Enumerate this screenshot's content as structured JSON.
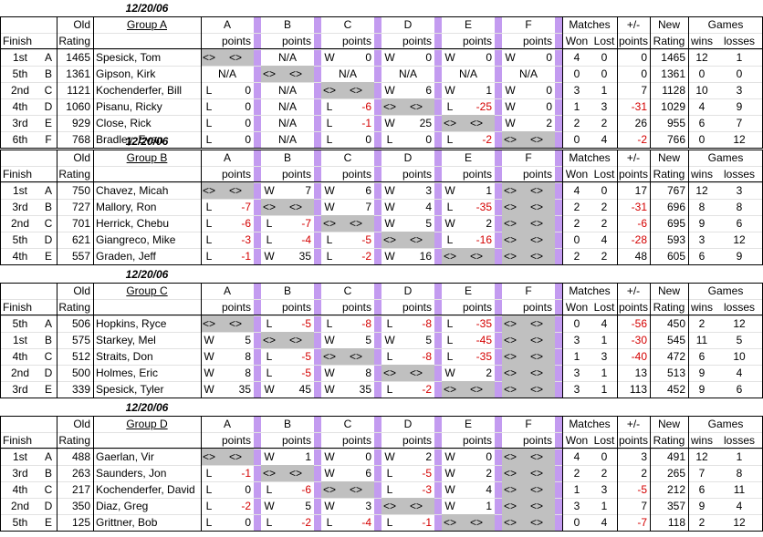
{
  "headers": {
    "old": "Old",
    "rating": "Rating",
    "finish": "Finish",
    "matches": "Matches",
    "won": "Won",
    "lost": "Lost",
    "plusminus": "+/-",
    "points": "points",
    "new": "New",
    "games": "Games",
    "wins": "wins",
    "losses": "losses",
    "na": "N/A",
    "self": "<>"
  },
  "groups": [
    {
      "date": "12/20/06",
      "name": "Group A",
      "cols": [
        "A",
        "B",
        "C",
        "D",
        "E",
        "F"
      ],
      "players": [
        {
          "finish": "1st",
          "letter": "A",
          "old": "1465",
          "name": "Spesick, Tom",
          "res": [
            [
              "<>",
              "<>"
            ],
            [
              "",
              "N/A"
            ],
            [
              "W",
              "0"
            ],
            [
              "W",
              "0"
            ],
            [
              "W",
              "0"
            ],
            [
              "W",
              "0"
            ]
          ],
          "won": "4",
          "lost": "0",
          "pm": "0",
          "new": "1465",
          "gw": "12",
          "gl": "1"
        },
        {
          "finish": "5th",
          "letter": "B",
          "old": "1361",
          "name": "Gipson, Kirk",
          "res": [
            [
              "N/A",
              ""
            ],
            [
              "<>",
              "<>"
            ],
            [
              "N/A",
              ""
            ],
            [
              "N/A",
              ""
            ],
            [
              "N/A",
              ""
            ],
            [
              "N/A",
              ""
            ]
          ],
          "won": "0",
          "lost": "0",
          "pm": "0",
          "new": "1361",
          "gw": "0",
          "gl": "0"
        },
        {
          "finish": "2nd",
          "letter": "C",
          "old": "1121",
          "name": "Kochenderfer, Bill",
          "res": [
            [
              "L",
              "0"
            ],
            [
              "",
              "N/A"
            ],
            [
              "<>",
              "<>"
            ],
            [
              "W",
              "6"
            ],
            [
              "W",
              "1"
            ],
            [
              "W",
              "0"
            ]
          ],
          "won": "3",
          "lost": "1",
          "pm": "7",
          "new": "1128",
          "gw": "10",
          "gl": "3"
        },
        {
          "finish": "4th",
          "letter": "D",
          "old": "1060",
          "name": "Pisanu, Ricky",
          "res": [
            [
              "L",
              "0"
            ],
            [
              "",
              "N/A"
            ],
            [
              "L",
              "-6"
            ],
            [
              "<>",
              "<>"
            ],
            [
              "L",
              "-25"
            ],
            [
              "W",
              "0"
            ]
          ],
          "won": "1",
          "lost": "3",
          "pm": "-31",
          "new": "1029",
          "gw": "4",
          "gl": "9"
        },
        {
          "finish": "3rd",
          "letter": "E",
          "old": "929",
          "name": "Close, Rick",
          "res": [
            [
              "L",
              "0"
            ],
            [
              "",
              "N/A"
            ],
            [
              "L",
              "-1"
            ],
            [
              "W",
              "25"
            ],
            [
              "<>",
              "<>"
            ],
            [
              "W",
              "2"
            ]
          ],
          "won": "2",
          "lost": "2",
          "pm": "26",
          "new": "955",
          "gw": "6",
          "gl": "7"
        },
        {
          "finish": "6th",
          "letter": "F",
          "old": "768",
          "name": "Bradley, Evan",
          "res": [
            [
              "L",
              "0"
            ],
            [
              "",
              "N/A"
            ],
            [
              "L",
              "0"
            ],
            [
              "L",
              "0"
            ],
            [
              "L",
              "-2"
            ],
            [
              "<>",
              "<>"
            ]
          ],
          "won": "0",
          "lost": "4",
          "pm": "-2",
          "new": "766",
          "gw": "0",
          "gl": "12"
        }
      ]
    },
    {
      "date": "12/20/06",
      "name": "Group B",
      "cols": [
        "A",
        "B",
        "C",
        "D",
        "E",
        "F"
      ],
      "players": [
        {
          "finish": "1st",
          "letter": "A",
          "old": "750",
          "name": "Chavez, Micah",
          "res": [
            [
              "<>",
              "<>"
            ],
            [
              "W",
              "7"
            ],
            [
              "W",
              "6"
            ],
            [
              "W",
              "3"
            ],
            [
              "W",
              "1"
            ],
            [
              "<>",
              "<>"
            ]
          ],
          "won": "4",
          "lost": "0",
          "pm": "17",
          "new": "767",
          "gw": "12",
          "gl": "3"
        },
        {
          "finish": "3rd",
          "letter": "B",
          "old": "727",
          "name": "Mallory, Ron",
          "res": [
            [
              "L",
              "-7"
            ],
            [
              "<>",
              "<>"
            ],
            [
              "W",
              "7"
            ],
            [
              "W",
              "4"
            ],
            [
              "L",
              "-35"
            ],
            [
              "<>",
              "<>"
            ]
          ],
          "won": "2",
          "lost": "2",
          "pm": "-31",
          "new": "696",
          "gw": "8",
          "gl": "8"
        },
        {
          "finish": "2nd",
          "letter": "C",
          "old": "701",
          "name": "Herrick, Chebu",
          "res": [
            [
              "L",
              "-6"
            ],
            [
              "L",
              "-7"
            ],
            [
              "<>",
              "<>"
            ],
            [
              "W",
              "5"
            ],
            [
              "W",
              "2"
            ],
            [
              "<>",
              "<>"
            ]
          ],
          "won": "2",
          "lost": "2",
          "pm": "-6",
          "new": "695",
          "gw": "9",
          "gl": "6"
        },
        {
          "finish": "5th",
          "letter": "D",
          "old": "621",
          "name": "Giangreco, Mike",
          "res": [
            [
              "L",
              "-3"
            ],
            [
              "L",
              "-4"
            ],
            [
              "L",
              "-5"
            ],
            [
              "<>",
              "<>"
            ],
            [
              "L",
              "-16"
            ],
            [
              "<>",
              "<>"
            ]
          ],
          "won": "0",
          "lost": "4",
          "pm": "-28",
          "new": "593",
          "gw": "3",
          "gl": "12"
        },
        {
          "finish": "4th",
          "letter": "E",
          "old": "557",
          "name": "Graden, Jeff",
          "res": [
            [
              "L",
              "-1"
            ],
            [
              "W",
              "35"
            ],
            [
              "L",
              "-2"
            ],
            [
              "W",
              "16"
            ],
            [
              "<>",
              "<>"
            ],
            [
              "<>",
              "<>"
            ]
          ],
          "won": "2",
          "lost": "2",
          "pm": "48",
          "new": "605",
          "gw": "6",
          "gl": "9"
        }
      ]
    },
    {
      "date": "12/20/06",
      "name": "Group C",
      "cols": [
        "A",
        "B",
        "C",
        "D",
        "E",
        "F"
      ],
      "players": [
        {
          "finish": "5th",
          "letter": "A",
          "old": "506",
          "name": "Hopkins, Ryce",
          "res": [
            [
              "<>",
              "<>"
            ],
            [
              "L",
              "-5"
            ],
            [
              "L",
              "-8"
            ],
            [
              "L",
              "-8"
            ],
            [
              "L",
              "-35"
            ],
            [
              "<>",
              "<>"
            ]
          ],
          "won": "0",
          "lost": "4",
          "pm": "-56",
          "new": "450",
          "gw": "2",
          "gl": "12"
        },
        {
          "finish": "1st",
          "letter": "B",
          "old": "575",
          "name": "Starkey, Mel",
          "res": [
            [
              "W",
              "5"
            ],
            [
              "<>",
              "<>"
            ],
            [
              "W",
              "5"
            ],
            [
              "W",
              "5"
            ],
            [
              "L",
              "-45"
            ],
            [
              "<>",
              "<>"
            ]
          ],
          "won": "3",
          "lost": "1",
          "pm": "-30",
          "new": "545",
          "gw": "11",
          "gl": "5"
        },
        {
          "finish": "4th",
          "letter": "C",
          "old": "512",
          "name": "Straits, Don",
          "res": [
            [
              "W",
              "8"
            ],
            [
              "L",
              "-5"
            ],
            [
              "<>",
              "<>"
            ],
            [
              "L",
              "-8"
            ],
            [
              "L",
              "-35"
            ],
            [
              "<>",
              "<>"
            ]
          ],
          "won": "1",
          "lost": "3",
          "pm": "-40",
          "new": "472",
          "gw": "6",
          "gl": "10"
        },
        {
          "finish": "2nd",
          "letter": "D",
          "old": "500",
          "name": "Holmes, Eric",
          "res": [
            [
              "W",
              "8"
            ],
            [
              "L",
              "-5"
            ],
            [
              "W",
              "8"
            ],
            [
              "<>",
              "<>"
            ],
            [
              "W",
              "2"
            ],
            [
              "<>",
              "<>"
            ]
          ],
          "won": "3",
          "lost": "1",
          "pm": "13",
          "new": "513",
          "gw": "9",
          "gl": "4"
        },
        {
          "finish": "3rd",
          "letter": "E",
          "old": "339",
          "name": "Spesick, Tyler",
          "res": [
            [
              "W",
              "35"
            ],
            [
              "W",
              "45"
            ],
            [
              "W",
              "35"
            ],
            [
              "L",
              "-2"
            ],
            [
              "<>",
              "<>"
            ],
            [
              "<>",
              "<>"
            ]
          ],
          "won": "3",
          "lost": "1",
          "pm": "113",
          "new": "452",
          "gw": "9",
          "gl": "6"
        }
      ]
    },
    {
      "date": "12/20/06",
      "name": "Group D",
      "cols": [
        "A",
        "B",
        "C",
        "D",
        "E",
        "F"
      ],
      "players": [
        {
          "finish": "1st",
          "letter": "A",
          "old": "488",
          "name": "Gaerlan, Vir",
          "res": [
            [
              "<>",
              "<>"
            ],
            [
              "W",
              "1"
            ],
            [
              "W",
              "0"
            ],
            [
              "W",
              "2"
            ],
            [
              "W",
              "0"
            ],
            [
              "<>",
              "<>"
            ]
          ],
          "won": "4",
          "lost": "0",
          "pm": "3",
          "new": "491",
          "gw": "12",
          "gl": "1"
        },
        {
          "finish": "3rd",
          "letter": "B",
          "old": "263",
          "name": "Saunders, Jon",
          "res": [
            [
              "L",
              "-1"
            ],
            [
              "<>",
              "<>"
            ],
            [
              "W",
              "6"
            ],
            [
              "L",
              "-5"
            ],
            [
              "W",
              "2"
            ],
            [
              "<>",
              "<>"
            ]
          ],
          "won": "2",
          "lost": "2",
          "pm": "2",
          "new": "265",
          "gw": "7",
          "gl": "8"
        },
        {
          "finish": "4th",
          "letter": "C",
          "old": "217",
          "name": "Kochenderfer, David",
          "res": [
            [
              "L",
              "0"
            ],
            [
              "L",
              "-6"
            ],
            [
              "<>",
              "<>"
            ],
            [
              "L",
              "-3"
            ],
            [
              "W",
              "4"
            ],
            [
              "<>",
              "<>"
            ]
          ],
          "won": "1",
          "lost": "3",
          "pm": "-5",
          "new": "212",
          "gw": "6",
          "gl": "11"
        },
        {
          "finish": "2nd",
          "letter": "D",
          "old": "350",
          "name": "Diaz, Greg",
          "res": [
            [
              "L",
              "-2"
            ],
            [
              "W",
              "5"
            ],
            [
              "W",
              "3"
            ],
            [
              "<>",
              "<>"
            ],
            [
              "W",
              "1"
            ],
            [
              "<>",
              "<>"
            ]
          ],
          "won": "3",
          "lost": "1",
          "pm": "7",
          "new": "357",
          "gw": "9",
          "gl": "4"
        },
        {
          "finish": "5th",
          "letter": "E",
          "old": "125",
          "name": "Grittner, Bob",
          "res": [
            [
              "L",
              "0"
            ],
            [
              "L",
              "-2"
            ],
            [
              "L",
              "-4"
            ],
            [
              "L",
              "-1"
            ],
            [
              "<>",
              "<>"
            ],
            [
              "<>",
              "<>"
            ]
          ],
          "won": "0",
          "lost": "4",
          "pm": "-7",
          "new": "118",
          "gw": "2",
          "gl": "12"
        }
      ]
    }
  ]
}
